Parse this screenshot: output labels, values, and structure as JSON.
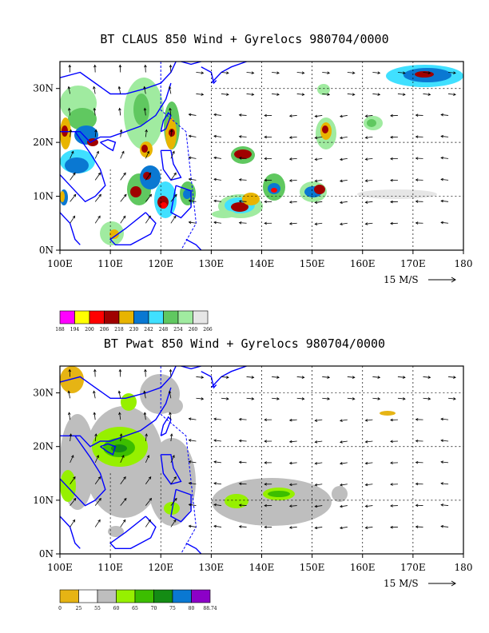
{
  "colors": {
    "coast": "#0000ff",
    "frame": "#000000",
    "grid": "#000000"
  },
  "panels": [
    {
      "id": "claus",
      "title": "BT CLAUS 850 Wind + Gyrelocs 980704/0000",
      "lat_labels": [
        "30N",
        "20N",
        "10N",
        "0N"
      ],
      "lon_labels": [
        "100E",
        "110E",
        "120E",
        "130E",
        "140E",
        "150E",
        "160E",
        "170E",
        "180"
      ],
      "ref_vector_label": "15 M/S",
      "colorbar": {
        "colors": [
          "#ff00ff",
          "#ffff00",
          "#ff0000",
          "#a00000",
          "#e8b400",
          "#0a78d2",
          "#40e0ff",
          "#60c860",
          "#a0eba0",
          "#e6e6e6"
        ],
        "labels": [
          "188",
          "194",
          "200",
          "206",
          "218",
          "230",
          "242",
          "248",
          "254",
          "260",
          "266"
        ]
      }
    },
    {
      "id": "pwat",
      "title": "BT Pwat 850 Wind + Gyrelocs 980704/0000",
      "lat_labels": [
        "30N",
        "20N",
        "10N",
        "0N"
      ],
      "lon_labels": [
        "100E",
        "110E",
        "120E",
        "130E",
        "140E",
        "150E",
        "160E",
        "170E",
        "180"
      ],
      "ref_vector_label": "15 M/S",
      "colorbar": {
        "colors": [
          "#e6b414",
          "#ffffff",
          "#bebebe",
          "#96f000",
          "#3cbe00",
          "#148c14",
          "#0a78d2",
          "#8c00c8"
        ],
        "labels": [
          "0",
          "25",
          "55",
          "60",
          "65",
          "70",
          "75",
          "80",
          "88.74"
        ]
      }
    }
  ]
}
